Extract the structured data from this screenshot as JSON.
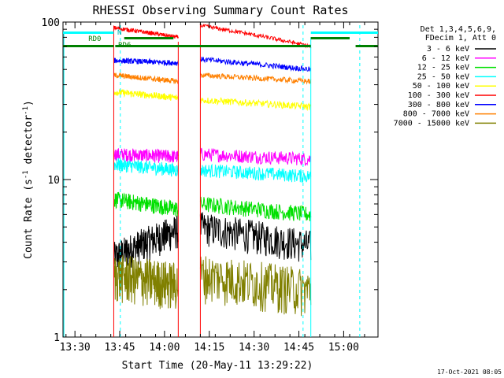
{
  "chart_data": {
    "type": "line",
    "title": "RHESSI Observing Summary Count Rates",
    "xlabel": "Start Time (20-May-11 13:29:22)",
    "ylabel_main": "Count Rate (s",
    "ylabel_sup": "-1",
    "ylabel_rest": " detector",
    "ylabel_sup2": "-1",
    "ylabel_close": ")",
    "yscale": "log",
    "ylim": [
      1,
      100
    ],
    "xlim_minutes": [
      13.5,
      15.15
    ],
    "x_ticks": [
      {
        "label": "13:30",
        "t": 0.0
      },
      {
        "label": "13:45",
        "t": 15.0
      },
      {
        "label": "14:00",
        "t": 30.0
      },
      {
        "label": "14:15",
        "t": 45.0
      },
      {
        "label": "14:30",
        "t": 60.0
      },
      {
        "label": "14:45",
        "t": 75.0
      },
      {
        "label": "15:00",
        "t": 90.0
      }
    ],
    "y_tick_labels": [
      {
        "label": "1",
        "v": 1
      },
      {
        "label": "10",
        "v": 10
      },
      {
        "label": "100",
        "v": 100
      }
    ],
    "legend_header": [
      "Det 1,3,4,5,6,9,",
      "FDecim 1, Att 0"
    ],
    "legend_placement": "right",
    "footer_date": "17-Oct-2021 08:05",
    "flags": [
      {
        "label": "N",
        "color": "#00b0b0"
      },
      {
        "label": "RD0",
        "color": "#008000"
      },
      {
        "label": "RD6",
        "color": "#008000"
      }
    ],
    "series": [
      {
        "name": "3 - 6 keV",
        "color": "#000000"
      },
      {
        "name": "6 - 12 keV",
        "color": "#ff00ff"
      },
      {
        "name": "12 - 25 keV",
        "color": "#00e000"
      },
      {
        "name": "25 - 50 keV",
        "color": "#00ffff"
      },
      {
        "name": "50 - 100 keV",
        "color": "#ffff00"
      },
      {
        "name": "100 - 300 keV",
        "color": "#ff0000"
      },
      {
        "name": "300 - 800 keV",
        "color": "#0000ff"
      },
      {
        "name": "800 - 7000 keV",
        "color": "#ff8000"
      },
      {
        "name": "7000 - 15000 keV",
        "color": "#808000"
      }
    ]
  }
}
